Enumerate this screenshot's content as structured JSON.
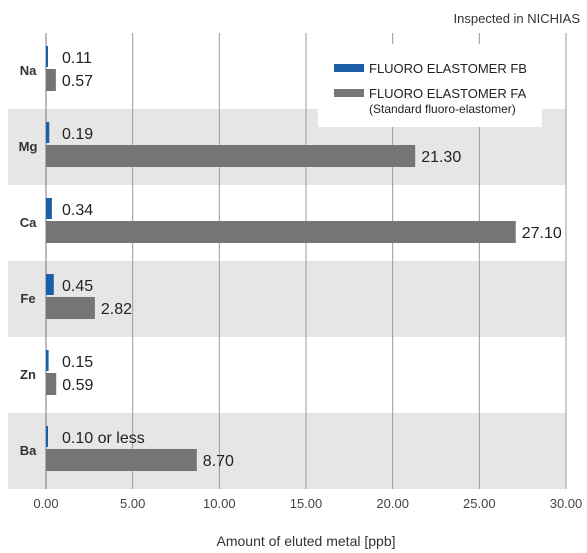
{
  "note": "Inspected in NICHIAS",
  "chart_data": {
    "type": "bar",
    "orientation": "horizontal",
    "categories": [
      "Na",
      "Mg",
      "Ca",
      "Fe",
      "Zn",
      "Ba"
    ],
    "series": [
      {
        "name": "FLUORO ELASTOMER FB",
        "color": "#1a5fa8",
        "values": [
          0.11,
          0.19,
          0.34,
          0.45,
          0.15,
          0.1
        ],
        "labels": [
          "0.11",
          "0.19",
          "0.34",
          "0.45",
          "0.15",
          "0.10 or less"
        ]
      },
      {
        "name": "FLUORO ELASTOMER FA",
        "name_sub": "(Standard fluoro-elastomer)",
        "color": "#757575",
        "values": [
          0.57,
          21.3,
          27.1,
          2.82,
          0.59,
          8.7
        ],
        "labels": [
          "0.57",
          "21.30",
          "27.10",
          "2.82",
          "0.59",
          "8.70"
        ]
      }
    ],
    "xlabel": "Amount of eluted metal [ppb]",
    "xlim": [
      0,
      30
    ],
    "xticks": [
      "0.00",
      "5.00",
      "10.00",
      "15.00",
      "20.00",
      "25.00",
      "30.00"
    ],
    "grid": true,
    "legend_position": "top-right",
    "row_band_color": "#e6e6e6"
  }
}
